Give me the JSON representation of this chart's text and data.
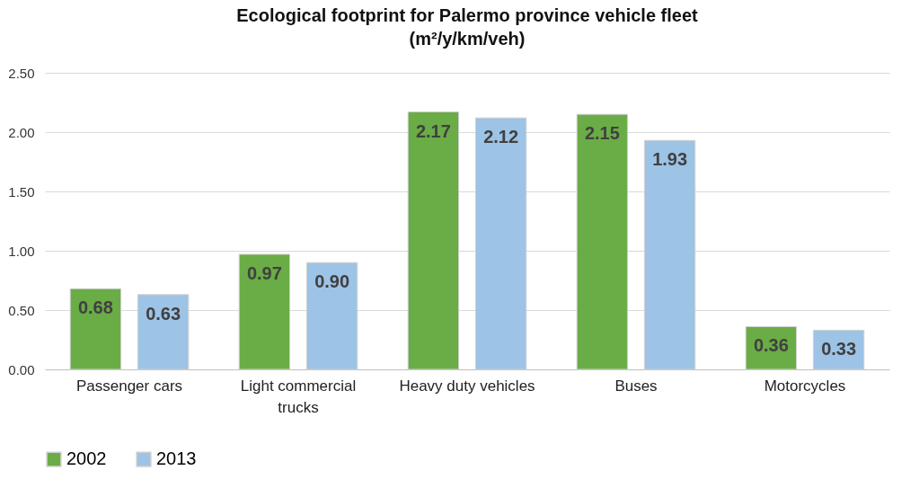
{
  "chart_data": {
    "type": "bar",
    "title": "Ecological footprint for Palermo province vehicle fleet\n(m²/y/km/veh)",
    "categories": [
      "Passenger cars",
      "Light commercial trucks",
      "Heavy duty vehicles",
      "Buses",
      "Motorcycles"
    ],
    "series": [
      {
        "name": "2002",
        "color": "#6aac46",
        "values": [
          0.68,
          0.97,
          2.17,
          2.15,
          0.36
        ],
        "value_labels": [
          "0.68",
          "0.97",
          "2.17",
          "2.15",
          "0.36"
        ]
      },
      {
        "name": "2013",
        "color": "#9dc3e6",
        "values": [
          0.63,
          0.9,
          2.12,
          1.93,
          0.33
        ],
        "value_labels": [
          "0.63",
          "0.90",
          "2.12",
          "1.93",
          "0.33"
        ]
      }
    ],
    "ylim": [
      0,
      2.5
    ],
    "yticks": [
      {
        "value": 0,
        "label": "0.00"
      },
      {
        "value": 0.5,
        "label": "0.50"
      },
      {
        "value": 1,
        "label": "1.00"
      },
      {
        "value": 1.5,
        "label": "1.50"
      },
      {
        "value": 2,
        "label": "2.00"
      },
      {
        "value": 2.5,
        "label": "2.50"
      }
    ],
    "grid": "y",
    "legend": "bottom"
  }
}
